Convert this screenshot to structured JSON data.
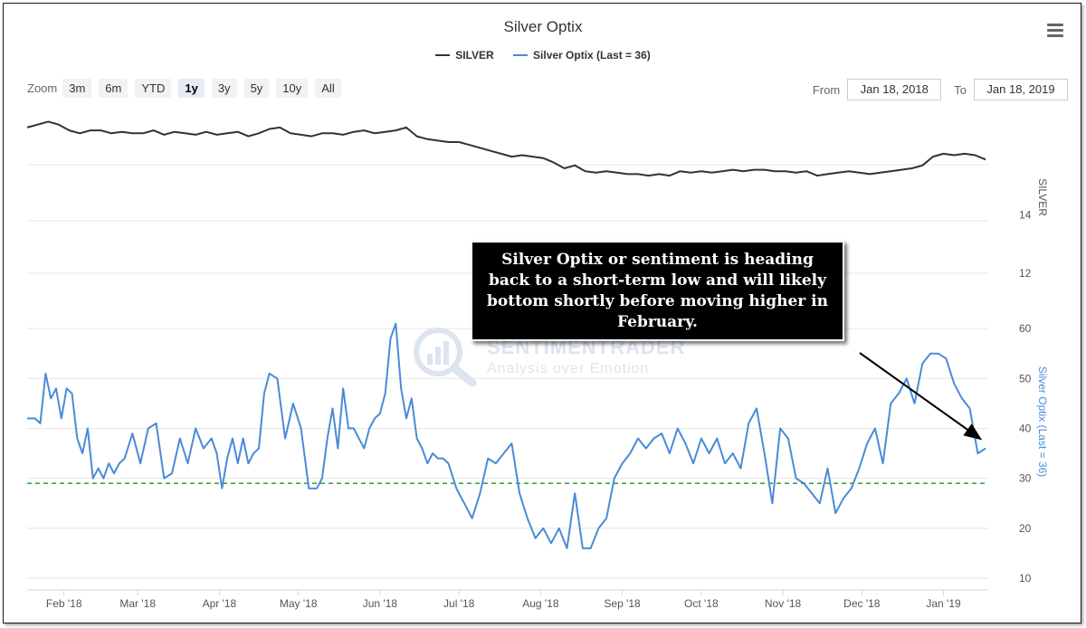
{
  "chart_data": {
    "type": "line",
    "title": "Silver Optix",
    "x_start": "Jan 18, 2018",
    "x_end": "Jan 18, 2019",
    "x_tick_labels": [
      "Feb '18",
      "Mar '18",
      "Apr '18",
      "May '18",
      "Jun '18",
      "Jul '18",
      "Aug '18",
      "Sep '18",
      "Oct '18",
      "Nov '18",
      "Dec '18",
      "Jan '19"
    ],
    "legend": [
      {
        "name": "SILVER",
        "color": "#333333"
      },
      {
        "name": "Silver Optix (Last = 36)",
        "color": "#4a8bd6"
      }
    ],
    "axes": {
      "silver": {
        "label": "SILVER",
        "ticks": [
          14
        ],
        "ylim": [
          13.8,
          17.4
        ]
      },
      "optix": {
        "label": "Silver Optix (Last = 36)",
        "ticks": [
          10,
          20,
          30,
          40,
          50,
          60
        ],
        "ylim": [
          8,
          66
        ],
        "reference_line": 29
      }
    },
    "series": [
      {
        "name": "SILVER",
        "x_days": [
          0,
          4,
          8,
          12,
          16,
          20,
          24,
          28,
          32,
          36,
          40,
          44,
          48,
          52,
          56,
          60,
          64,
          68,
          72,
          76,
          80,
          84,
          88,
          92,
          96,
          100,
          104,
          108,
          112,
          116,
          120,
          124,
          128,
          132,
          136,
          140,
          144,
          148,
          152,
          156,
          160,
          164,
          168,
          172,
          176,
          180,
          184,
          188,
          192,
          196,
          200,
          204,
          208,
          212,
          216,
          220,
          224,
          228,
          232,
          236,
          240,
          244,
          248,
          252,
          256,
          260,
          264,
          268,
          272,
          276,
          280,
          284,
          288,
          292,
          296,
          300,
          304,
          308,
          312,
          316,
          320,
          324,
          328,
          332,
          336,
          340,
          344,
          348,
          352,
          356,
          360,
          364
        ],
        "values": [
          17.0,
          17.1,
          17.2,
          17.1,
          16.9,
          16.8,
          16.9,
          16.9,
          16.8,
          16.85,
          16.8,
          16.8,
          16.9,
          16.75,
          16.85,
          16.8,
          16.75,
          16.85,
          16.75,
          16.8,
          16.85,
          16.7,
          16.8,
          16.95,
          17.0,
          16.8,
          16.75,
          16.7,
          16.8,
          16.8,
          16.75,
          16.85,
          16.9,
          16.8,
          16.85,
          16.9,
          17.0,
          16.7,
          16.6,
          16.55,
          16.5,
          16.5,
          16.4,
          16.3,
          16.2,
          16.1,
          16.0,
          16.05,
          16.0,
          15.95,
          15.8,
          15.6,
          15.7,
          15.5,
          15.45,
          15.5,
          15.45,
          15.4,
          15.4,
          15.35,
          15.4,
          15.35,
          15.5,
          15.45,
          15.5,
          15.45,
          15.5,
          15.55,
          15.5,
          15.55,
          15.55,
          15.5,
          15.5,
          15.45,
          15.5,
          15.35,
          15.4,
          15.45,
          15.5,
          15.45,
          15.4,
          15.45,
          15.5,
          15.55,
          15.6,
          15.7,
          16.0,
          16.1,
          16.05,
          16.1,
          16.05,
          15.9
        ],
        "color": "#333333"
      },
      {
        "name": "Silver Optix (Last = 36)",
        "x_days": [
          0,
          3,
          5,
          7,
          9,
          11,
          13,
          15,
          17,
          19,
          21,
          23,
          25,
          27,
          29,
          31,
          33,
          35,
          37,
          40,
          43,
          46,
          49,
          52,
          55,
          58,
          61,
          64,
          67,
          70,
          72,
          74,
          76,
          78,
          80,
          82,
          84,
          86,
          88,
          90,
          92,
          95,
          98,
          101,
          104,
          107,
          110,
          112,
          114,
          116,
          118,
          120,
          122,
          124,
          126,
          128,
          130,
          132,
          134,
          136,
          138,
          140,
          142,
          144,
          146,
          148,
          150,
          152,
          154,
          156,
          158,
          160,
          163,
          166,
          169,
          172,
          175,
          178,
          181,
          184,
          187,
          190,
          193,
          196,
          199,
          202,
          205,
          208,
          211,
          214,
          217,
          220,
          223,
          226,
          229,
          232,
          235,
          238,
          241,
          244,
          247,
          250,
          253,
          256,
          259,
          262,
          265,
          268,
          271,
          274,
          277,
          280,
          283,
          286,
          289,
          292,
          295,
          298,
          301,
          304,
          307,
          310,
          313,
          316,
          319,
          322,
          325,
          328,
          331,
          334,
          337,
          340,
          343,
          346,
          349,
          352,
          355,
          358,
          361,
          364
        ],
        "values": [
          42,
          42,
          41,
          51,
          46,
          48,
          42,
          48,
          47,
          38,
          35,
          40,
          30,
          32,
          30,
          33,
          31,
          33,
          34,
          39,
          33,
          40,
          41,
          30,
          31,
          38,
          33,
          40,
          36,
          38,
          35,
          28,
          34,
          38,
          33,
          38,
          33,
          35,
          36,
          47,
          51,
          50,
          38,
          45,
          40,
          28,
          28,
          30,
          38,
          44,
          36,
          48,
          40,
          40,
          38,
          36,
          40,
          42,
          43,
          47,
          58,
          61,
          48,
          42,
          46,
          38,
          36,
          33,
          35,
          34,
          34,
          33,
          28,
          25,
          22,
          27,
          34,
          33,
          35,
          37,
          27,
          22,
          18,
          20,
          17,
          20,
          16,
          27,
          16,
          16,
          20,
          22,
          30,
          33,
          35,
          38,
          36,
          38,
          39,
          35,
          40,
          37,
          33,
          38,
          35,
          38,
          33,
          35,
          32,
          41,
          44,
          35,
          25,
          40,
          38,
          30,
          29,
          27,
          25,
          32,
          23,
          26,
          28,
          32,
          37,
          40,
          33,
          45,
          47,
          50,
          45,
          53,
          55,
          55,
          54,
          49,
          46,
          44,
          35,
          36
        ],
        "color": "#4a8bd6"
      }
    ]
  },
  "annotation": {
    "text": "Silver Optix or sentiment is heading back to a short-term low and will likely bottom shortly before moving higher in February."
  },
  "toolbar": {
    "zoom_label": "Zoom",
    "zoom_buttons": [
      "3m",
      "6m",
      "YTD",
      "1y",
      "3y",
      "5y",
      "10y",
      "All"
    ],
    "active_zoom": "1y",
    "from_label": "From",
    "from_value": "Jan 18, 2018",
    "to_label": "To",
    "to_value": "Jan 18, 2019",
    "menu_icon": "hamburger-menu-icon"
  },
  "watermark": {
    "line1": "SENTIMENTRADER",
    "line2": "Analysis over Emotion",
    "icon": "magnifier-chart-icon"
  }
}
